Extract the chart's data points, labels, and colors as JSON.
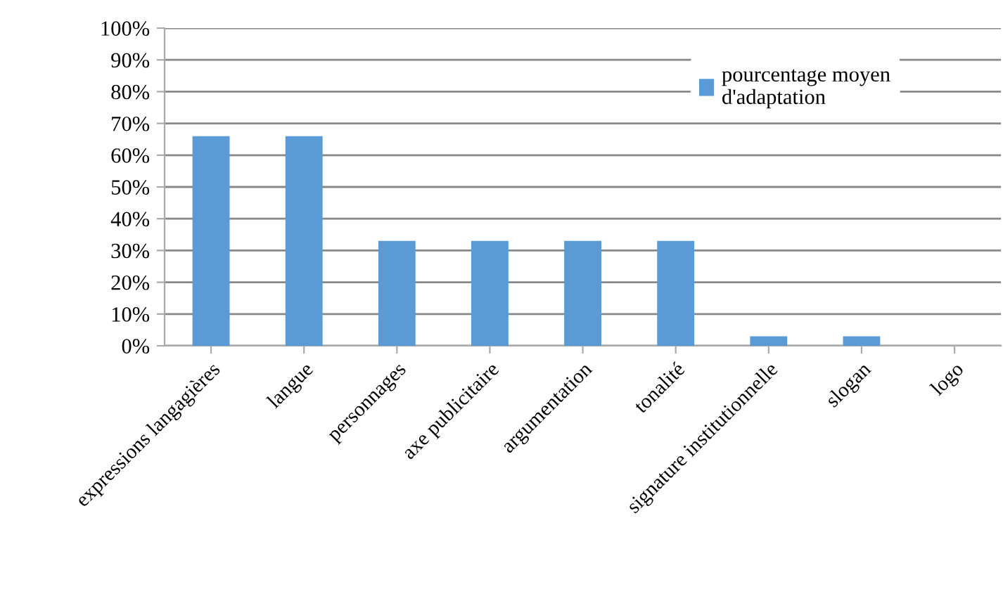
{
  "chart_data": {
    "type": "bar",
    "categories": [
      "expressions langagières",
      "langue",
      "personnages",
      "axe publicitaire",
      "argumentation",
      "tonalité",
      "signature institutionnelle",
      "slogan",
      "logo"
    ],
    "series": [
      {
        "name": "pourcentage moyen\nd'adaptation",
        "color": "#5b9bd5",
        "values": [
          66,
          66,
          33,
          33,
          33,
          33,
          3,
          3,
          0
        ]
      }
    ],
    "ylim": [
      0,
      100
    ],
    "yticks": [
      {
        "value": 0,
        "label": "0%"
      },
      {
        "value": 10,
        "label": "10%"
      },
      {
        "value": 20,
        "label": "20%"
      },
      {
        "value": 30,
        "label": "30%"
      },
      {
        "value": 40,
        "label": "40%"
      },
      {
        "value": 50,
        "label": "50%"
      },
      {
        "value": 60,
        "label": "60%"
      },
      {
        "value": 70,
        "label": "70%"
      },
      {
        "value": 80,
        "label": "80%"
      },
      {
        "value": 90,
        "label": "90%"
      },
      {
        "value": 100,
        "label": "100%"
      }
    ],
    "grid": "y",
    "legend": "top right"
  }
}
